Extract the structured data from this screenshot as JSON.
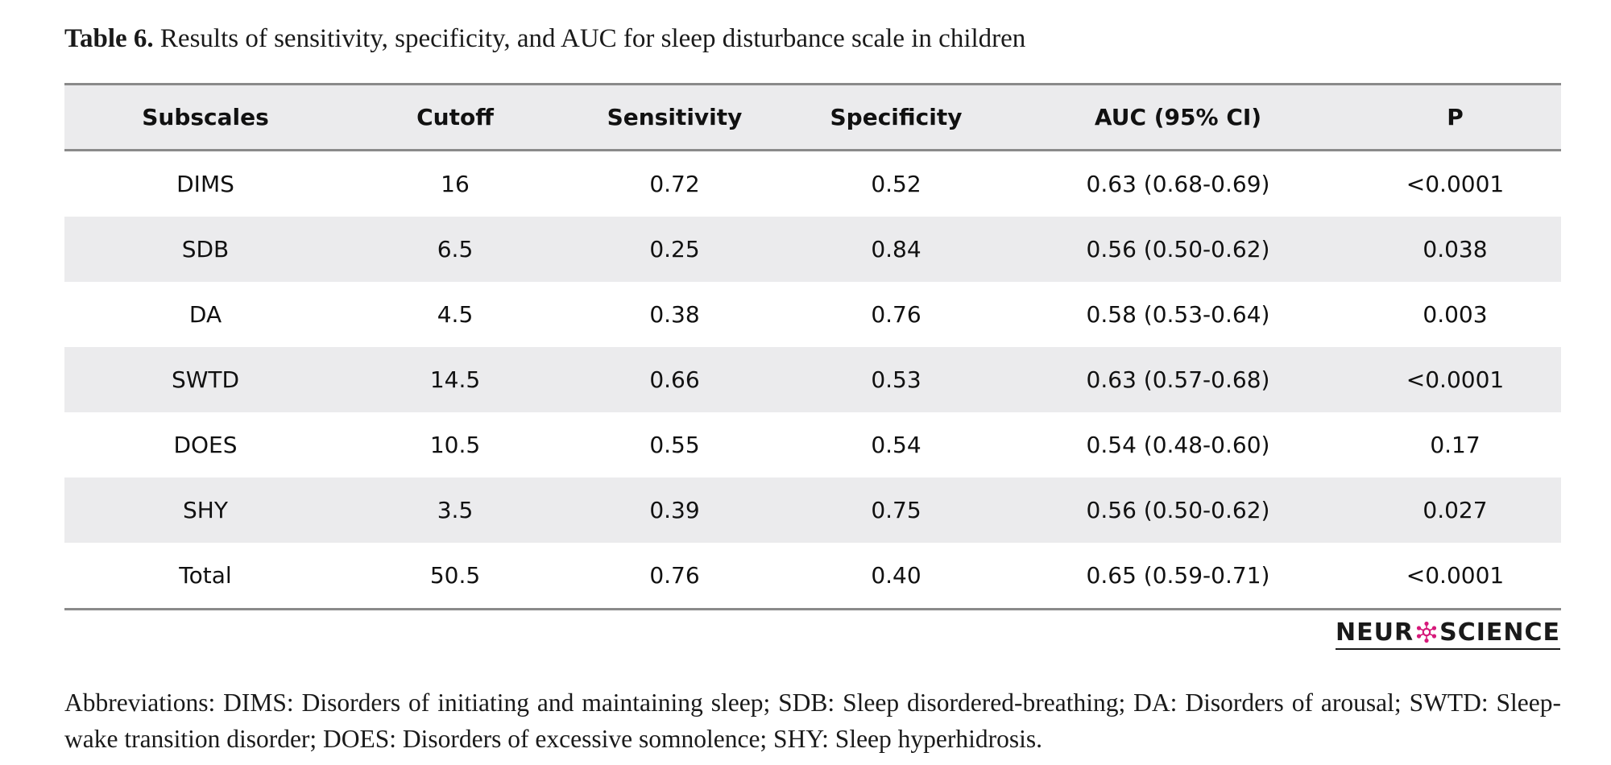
{
  "caption": {
    "lead": "Table 6.",
    "text": "Results of sensitivity, specificity, and AUC for sleep disturbance scale in children"
  },
  "table": {
    "headers": [
      "Subscales",
      "Cutoff",
      "Sensitivity",
      "Specificity",
      "AUC (95% CI)",
      "P"
    ],
    "rows": [
      [
        "DIMS",
        "16",
        "0.72",
        "0.52",
        "0.63 (0.68-0.69)",
        "<0.0001"
      ],
      [
        "SDB",
        "6.5",
        "0.25",
        "0.84",
        "0.56 (0.50-0.62)",
        "0.038"
      ],
      [
        "DA",
        "4.5",
        "0.38",
        "0.76",
        "0.58 (0.53-0.64)",
        "0.003"
      ],
      [
        "SWTD",
        "14.5",
        "0.66",
        "0.53",
        "0.63 (0.57-0.68)",
        "<0.0001"
      ],
      [
        "DOES",
        "10.5",
        "0.55",
        "0.54",
        "0.54 (0.48-0.60)",
        "0.17"
      ],
      [
        "SHY",
        "3.5",
        "0.39",
        "0.75",
        "0.56 (0.50-0.62)",
        "0.027"
      ],
      [
        "Total",
        "50.5",
        "0.76",
        "0.40",
        "0.65 (0.59-0.71)",
        "<0.0001"
      ]
    ]
  },
  "logo": {
    "left": "NEUR",
    "right": "SCIENCE",
    "accent_color": "#d6197a"
  },
  "footnote": "Abbreviations: DIMS: Disorders of initiating and maintaining sleep; SDB: Sleep disordered-breathing; DA: Disorders of arousal; SWTD: Sleep-wake transition disorder; DOES: Disorders of excessive somnolence; SHY: Sleep hyperhidrosis."
}
